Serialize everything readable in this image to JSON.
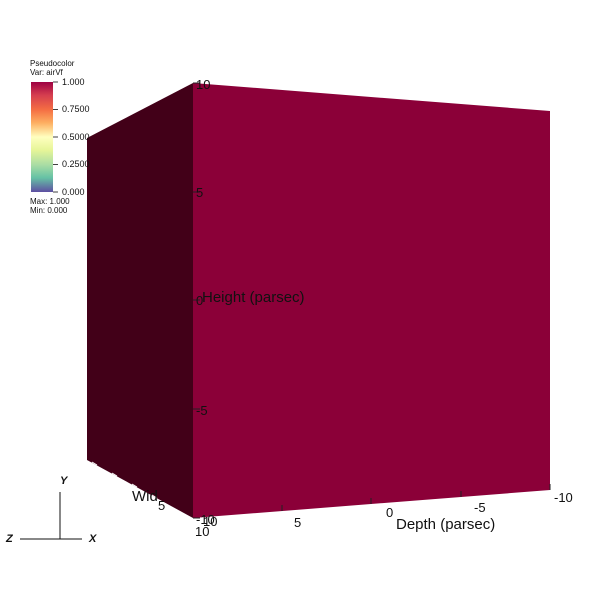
{
  "legend": {
    "title": "Pseudocolor",
    "variable": "Var: airVf",
    "ticks": [
      "1.000",
      "0.7500",
      "0.5000",
      "0.2500",
      "0.000"
    ],
    "max_label": "Max:  1.000",
    "min_label": "Min:  0.000"
  },
  "axes": {
    "height_label": "Height (parsec)",
    "depth_label": "Depth (parsec)",
    "width_label": "Wid",
    "height_ticks": [
      "10",
      "5",
      "0",
      "-5",
      "-10"
    ],
    "depth_ticks": [
      "10",
      "5",
      "0",
      "-5",
      "-10"
    ],
    "width_ticks": [
      "5",
      "10"
    ]
  },
  "triad": {
    "x": "X",
    "y": "Y",
    "z": "Z"
  },
  "colors": {
    "front_face": "#8b0038",
    "side_face": "#420018",
    "background": "#ffffff"
  }
}
